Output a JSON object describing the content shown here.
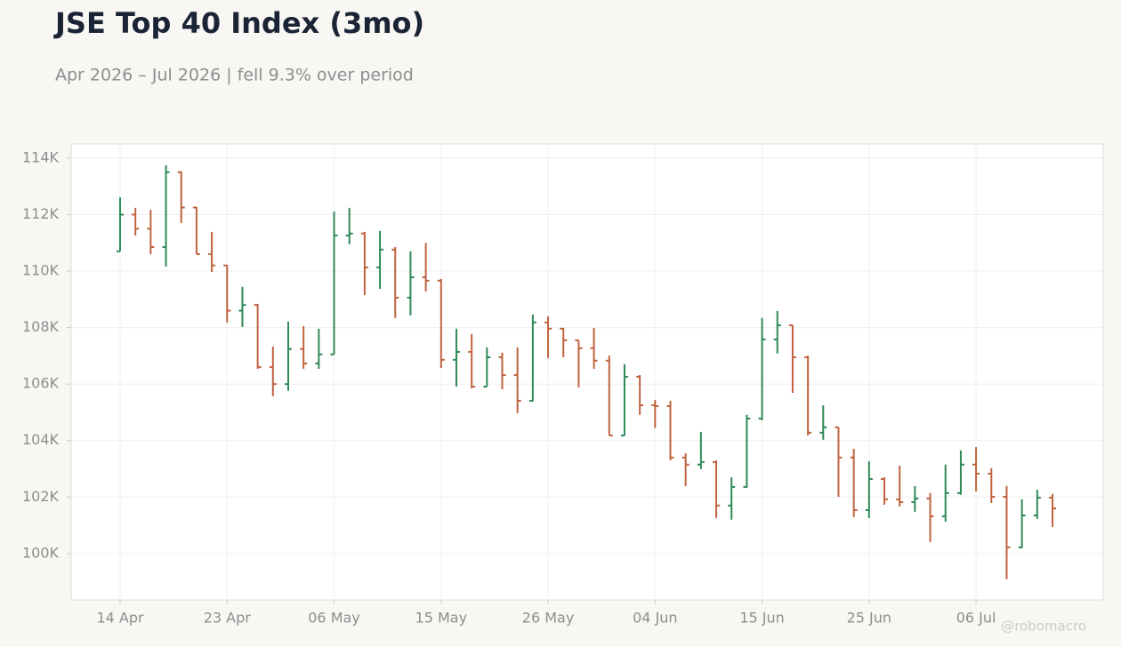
{
  "chart_data": {
    "type": "ohlc",
    "title": "JSE Top 40 Index (3mo)",
    "subtitle": "Apr 2026 – Jul 2026 | fell 9.3% over period",
    "watermark": "@robomacro",
    "categories": [
      "14 Apr",
      null,
      null,
      null,
      null,
      null,
      null,
      "23 Apr",
      null,
      null,
      null,
      null,
      null,
      null,
      "06 May",
      null,
      null,
      null,
      null,
      null,
      null,
      "15 May",
      null,
      null,
      null,
      null,
      null,
      null,
      "26 May",
      null,
      null,
      null,
      null,
      null,
      null,
      "04 Jun",
      null,
      null,
      null,
      null,
      null,
      null,
      "15 Jun",
      null,
      null,
      null,
      null,
      null,
      null,
      "25 Jun",
      null,
      null,
      null,
      null,
      null,
      null,
      "06 Jul",
      null,
      null,
      null,
      null,
      null
    ],
    "open": [
      110700,
      112000,
      111500,
      110850,
      113500,
      112250,
      110600,
      110200,
      108600,
      108800,
      106600,
      106000,
      107240,
      106730,
      107050,
      111260,
      111330,
      110130,
      110760,
      109060,
      109780,
      109660,
      106860,
      107140,
      105910,
      106950,
      106320,
      105410,
      108180,
      107960,
      107550,
      107270,
      106830,
      104180,
      106260,
      105250,
      105220,
      103400,
      103150,
      103240,
      101700,
      102360,
      104780,
      107580,
      108080,
      106950,
      104280,
      104470,
      103400,
      101540,
      102640,
      101920,
      101820,
      101950,
      101320,
      102140,
      103150,
      102830,
      102010,
      100220,
      101350,
      101980
    ],
    "high": [
      112610,
      112240,
      112170,
      113750,
      113530,
      112270,
      111390,
      110220,
      109440,
      108840,
      107330,
      108210,
      108050,
      107960,
      112110,
      112240,
      111390,
      111420,
      110850,
      110700,
      111000,
      109720,
      107960,
      107770,
      107300,
      107110,
      107300,
      108460,
      108400,
      107990,
      107550,
      107990,
      107010,
      106700,
      106320,
      105440,
      105410,
      103550,
      104310,
      103300,
      102700,
      104910,
      108340,
      108590,
      108080,
      107010,
      105250,
      104470,
      103710,
      103270,
      102700,
      103110,
      102390,
      102140,
      103150,
      103650,
      103770,
      103020,
      102390,
      101920,
      102260,
      102110
    ],
    "low": [
      110700,
      111260,
      110600,
      110160,
      111700,
      110600,
      109970,
      108180,
      108020,
      106540,
      105570,
      105760,
      106540,
      106540,
      107050,
      110950,
      109150,
      109370,
      108340,
      108430,
      109280,
      106570,
      105910,
      105850,
      105910,
      105820,
      104970,
      105380,
      106920,
      106950,
      105880,
      106540,
      104180,
      104180,
      104910,
      104440,
      103300,
      102390,
      102990,
      101260,
      101200,
      102330,
      104720,
      107080,
      105690,
      104180,
      104030,
      102010,
      101290,
      101260,
      101730,
      101670,
      101480,
      100410,
      101130,
      102080,
      102200,
      101790,
      99090,
      100190,
      101230,
      100940
    ],
    "close": [
      112000,
      111500,
      110850,
      113500,
      112250,
      110600,
      110200,
      108600,
      108800,
      106600,
      106000,
      107240,
      106730,
      107050,
      111260,
      111330,
      110130,
      110760,
      109060,
      109780,
      109660,
      106860,
      107140,
      105910,
      106950,
      106320,
      105410,
      108180,
      107960,
      107550,
      107270,
      106830,
      104180,
      106260,
      105250,
      105220,
      103400,
      103150,
      103240,
      101700,
      102360,
      104780,
      107580,
      108080,
      106950,
      104280,
      104470,
      103400,
      101540,
      102640,
      101920,
      101820,
      101950,
      101320,
      102140,
      103150,
      102830,
      102010,
      100220,
      101350,
      101980,
      101600
    ],
    "up_color": "#2e8a57",
    "down_color": "#c0633f",
    "ylim": [
      98360,
      114500
    ],
    "yticks": [
      {
        "value": 100000,
        "label": "100K"
      },
      {
        "value": 102000,
        "label": "102K"
      },
      {
        "value": 104000,
        "label": "104K"
      },
      {
        "value": 106000,
        "label": "106K"
      },
      {
        "value": 108000,
        "label": "108K"
      },
      {
        "value": 110000,
        "label": "110K"
      },
      {
        "value": 112000,
        "label": "112K"
      },
      {
        "value": 114000,
        "label": "114K"
      }
    ],
    "grid": true
  }
}
